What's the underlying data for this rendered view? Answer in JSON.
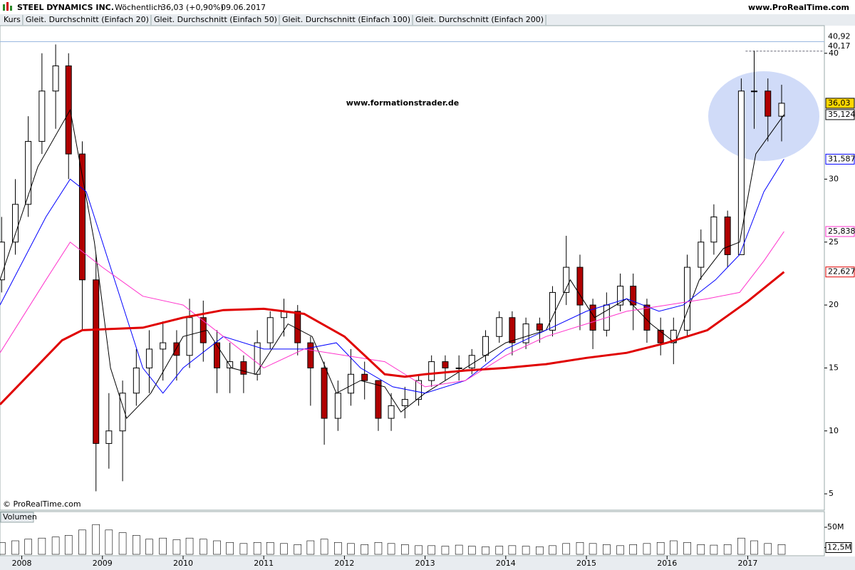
{
  "header": {
    "title": "STEEL DYNAMICS INC.",
    "period": "Wöchentlich",
    "quote": "36,03 (+0,90%)",
    "date": "09.06.2017",
    "site": "www.ProRealTime.com"
  },
  "chart_data": [
    {
      "type": "candlestick",
      "series_label": "Kurs",
      "watermark": "www.formationstrader.de",
      "copyright": "© ProRealTime.com",
      "up_color": "#ffffff",
      "down_color": "#b00000",
      "x": [
        2007.75,
        2007.92,
        2008.08,
        2008.25,
        2008.42,
        2008.58,
        2008.75,
        2008.92,
        2009.08,
        2009.25,
        2009.42,
        2009.58,
        2009.75,
        2009.92,
        2010.08,
        2010.25,
        2010.42,
        2010.58,
        2010.75,
        2010.92,
        2011.08,
        2011.25,
        2011.42,
        2011.58,
        2011.75,
        2011.92,
        2012.08,
        2012.25,
        2012.42,
        2012.58,
        2012.75,
        2012.92,
        2013.08,
        2013.25,
        2013.42,
        2013.58,
        2013.75,
        2013.92,
        2014.08,
        2014.25,
        2014.42,
        2014.58,
        2014.75,
        2014.92,
        2015.08,
        2015.25,
        2015.42,
        2015.58,
        2015.75,
        2015.92,
        2016.08,
        2016.25,
        2016.42,
        2016.58,
        2016.75,
        2016.92,
        2017.08,
        2017.25,
        2017.42
      ],
      "open": [
        22,
        25,
        28,
        33,
        37,
        39,
        32,
        22,
        9,
        10,
        13,
        15,
        16.5,
        17,
        16,
        19,
        17,
        15,
        15.5,
        14.5,
        17,
        19,
        19.5,
        17,
        15,
        11,
        13,
        14.5,
        14,
        11,
        12,
        12.5,
        14,
        15.5,
        15,
        15,
        16,
        17.5,
        19,
        17,
        18.5,
        18,
        21,
        23,
        20,
        18,
        20,
        21.5,
        20,
        18,
        17,
        18,
        23,
        25,
        27,
        24,
        37,
        37,
        35
      ],
      "high": [
        27,
        30,
        35,
        40,
        40.7,
        40,
        33,
        24,
        13,
        14,
        16.5,
        18,
        18.7,
        18,
        20.5,
        20.35,
        18,
        17,
        16,
        18,
        19.5,
        20.5,
        20,
        17.5,
        15.5,
        14,
        16.5,
        15.5,
        14,
        13,
        13.5,
        14.5,
        16,
        16,
        16,
        16.5,
        18,
        19.5,
        19.5,
        19,
        19,
        21.5,
        25.5,
        24,
        20.5,
        21,
        22.5,
        22.5,
        20.5,
        19,
        19,
        24,
        26,
        28,
        27.5,
        38,
        40.2,
        38,
        37.5
      ],
      "low": [
        21,
        24,
        27,
        32,
        34,
        30,
        18,
        5.2,
        7,
        6,
        12,
        13,
        14,
        14,
        15,
        15.5,
        13,
        13,
        13,
        14,
        16.5,
        17.5,
        16,
        12,
        8.9,
        10,
        12,
        12.5,
        10,
        10,
        11,
        12,
        13.5,
        14,
        14,
        14.5,
        15.5,
        17,
        16,
        16.5,
        17,
        17.5,
        20,
        18,
        16.5,
        17.5,
        19.5,
        18,
        17,
        16,
        15.3,
        17.5,
        22,
        24,
        23,
        24,
        34,
        33,
        33
      ],
      "close": [
        25,
        28,
        33,
        37,
        39,
        32,
        22,
        9,
        10,
        13,
        15,
        16.5,
        17,
        16,
        19,
        17,
        15,
        15.5,
        14.5,
        17,
        19,
        19.5,
        17,
        15,
        11,
        13,
        14.5,
        14,
        11,
        12,
        12.5,
        14,
        15.5,
        15,
        15,
        16,
        17.5,
        19,
        17,
        18.5,
        18,
        21,
        23,
        20,
        18,
        20,
        21.5,
        20,
        18,
        17,
        18,
        23,
        25,
        27,
        24,
        37,
        37,
        35,
        36.03
      ],
      "xlim": [
        2007.73,
        2017.95
      ],
      "ylim": [
        3.76,
        43.1
      ],
      "yticks": [
        5,
        10,
        15,
        20,
        25,
        30,
        40
      ],
      "series": [
        {
          "name": "Gleit. Durchschnitt (Einfach 20)",
          "color": "#000000",
          "width": 1,
          "x": [
            2007.73,
            2008.2,
            2008.6,
            2008.9,
            2009.1,
            2009.3,
            2009.6,
            2010,
            2010.3,
            2010.6,
            2010.9,
            2011.3,
            2011.6,
            2011.9,
            2012.2,
            2012.5,
            2012.7,
            2013,
            2013.5,
            2014,
            2014.5,
            2014.8,
            2015.1,
            2015.5,
            2015.8,
            2016.1,
            2016.4,
            2016.7,
            2016.9,
            2017.1,
            2017.45
          ],
          "values": [
            22,
            31,
            35.5,
            25,
            15,
            11,
            13,
            17.5,
            18,
            15,
            14.5,
            18.5,
            17.5,
            13,
            14,
            13.5,
            11.5,
            13,
            15,
            17,
            18,
            22,
            19,
            20.5,
            18.5,
            17,
            22,
            24.5,
            25,
            32,
            35.124
          ]
        },
        {
          "name": "Gleit. Durchschnitt (Einfach 50)",
          "color": "#0000ff",
          "width": 1,
          "x": [
            2007.73,
            2008.3,
            2008.6,
            2008.8,
            2009.2,
            2009.5,
            2009.75,
            2010,
            2010.5,
            2011,
            2011.5,
            2011.9,
            2012.2,
            2012.6,
            2013,
            2013.5,
            2014,
            2014.5,
            2015,
            2015.5,
            2015.9,
            2016.2,
            2016.6,
            2016.9,
            2017.2,
            2017.45
          ],
          "values": [
            20,
            27,
            30,
            29,
            21,
            15,
            13,
            15,
            17.5,
            16.5,
            16.5,
            17,
            15,
            13.5,
            13,
            14,
            16.5,
            18,
            19.5,
            20.5,
            19.5,
            20,
            22,
            24,
            29,
            31.587
          ]
        },
        {
          "name": "Gleit. Durchschnitt (Einfach 100)",
          "color": "#ff33cc",
          "width": 1,
          "x": [
            2007.73,
            2008.3,
            2008.6,
            2009,
            2009.5,
            2010,
            2010.5,
            2011,
            2011.5,
            2012,
            2012.5,
            2013,
            2013.5,
            2014,
            2014.5,
            2015,
            2015.5,
            2016,
            2016.5,
            2016.9,
            2017.2,
            2017.45
          ],
          "values": [
            16.2,
            22,
            25,
            23,
            20.7,
            20,
            17.5,
            15,
            16.5,
            16,
            15.5,
            13.5,
            14,
            16,
            17.5,
            18.5,
            19.5,
            20,
            20.5,
            21,
            23.5,
            25.838
          ]
        },
        {
          "name": "Gleit. Durchschnitt (Einfach 200)",
          "color": "#e00000",
          "width": 3,
          "x": [
            2007.73,
            2008.5,
            2008.75,
            2009.5,
            2010,
            2010.5,
            2011,
            2011.5,
            2012,
            2012.5,
            2012.75,
            2013,
            2013.5,
            2014,
            2014.5,
            2015,
            2015.5,
            2016,
            2016.5,
            2017,
            2017.45
          ],
          "values": [
            12.1,
            17.2,
            18,
            18.2,
            19,
            19.6,
            19.7,
            19.3,
            17.5,
            14.5,
            14.3,
            14.5,
            14.8,
            15,
            15.3,
            15.8,
            16.2,
            17,
            18,
            20.3,
            22.627
          ]
        }
      ],
      "price_labels": [
        {
          "value": 40.92,
          "label": "40,92",
          "color": "#000000",
          "line": "solid"
        },
        {
          "value": 40.17,
          "label": "40,17",
          "color": "#000000",
          "line": "dashed"
        },
        {
          "value": 36.03,
          "label": "36,03",
          "color": "#000000",
          "background": "#ffd700"
        },
        {
          "value": 35.124,
          "label": "35,124",
          "color": "#000000"
        },
        {
          "value": 31.587,
          "label": "31,587",
          "color": "#0000ff"
        },
        {
          "value": 25.838,
          "label": "25,838",
          "color": "#ff33cc"
        },
        {
          "value": 22.627,
          "label": "22,627",
          "color": "#e00000"
        }
      ]
    },
    {
      "type": "bar",
      "title": "Volumen",
      "color": "#000000",
      "values": [
        22,
        25,
        28,
        30,
        32,
        35,
        45,
        55,
        45,
        40,
        35,
        28,
        30,
        27,
        30,
        28,
        25,
        22,
        20,
        22,
        22,
        20,
        18,
        25,
        28,
        22,
        20,
        18,
        22,
        20,
        18,
        16,
        16,
        15,
        17,
        15,
        14,
        15,
        16,
        15,
        14,
        16,
        20,
        22,
        20,
        18,
        16,
        18,
        20,
        22,
        25,
        22,
        18,
        17,
        18,
        30,
        25,
        20,
        18
      ],
      "ylim": [
        0,
        56.6
      ],
      "yticks": [
        {
          "value": 12.5,
          "label": "12,5M"
        },
        {
          "value": 50,
          "label": "50M"
        }
      ],
      "xticks": [
        2008,
        2009,
        2010,
        2011,
        2012,
        2013,
        2014,
        2015,
        2016,
        2017
      ]
    }
  ]
}
